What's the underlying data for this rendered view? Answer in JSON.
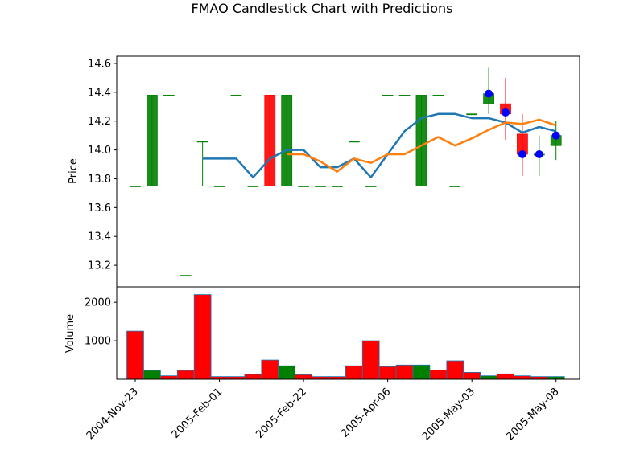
{
  "chart_data": {
    "type": "candlestick",
    "title": "FMAO Candlestick Chart with Predictions",
    "price_ylabel": "Price",
    "volume_ylabel": "Volume",
    "price_ylim": [
      13.05,
      14.65
    ],
    "volume_ylim": [
      0,
      2400
    ],
    "price_yticks": [
      "13.2",
      "13.4",
      "13.6",
      "13.8",
      "14.0",
      "14.2",
      "14.4",
      "14.6"
    ],
    "volume_yticks": [
      "1000",
      "2000"
    ],
    "x_ticks": [
      {
        "index": 0,
        "label": "2004-Nov-23"
      },
      {
        "index": 5,
        "label": "2005-Feb-01"
      },
      {
        "index": 10,
        "label": "2005-Feb-22"
      },
      {
        "index": 15,
        "label": "2005-Apr-06"
      },
      {
        "index": 20,
        "label": "2005-May-03"
      },
      {
        "index": 25,
        "label": "2005-May-08"
      }
    ],
    "candles": [
      {
        "o": 13.75,
        "h": 13.75,
        "l": 13.75,
        "c": 13.75
      },
      {
        "o": 13.75,
        "h": 14.38,
        "l": 13.75,
        "c": 14.38
      },
      {
        "o": 14.38,
        "h": 14.38,
        "l": 14.38,
        "c": 14.38
      },
      {
        "o": 13.13,
        "h": 13.13,
        "l": 13.13,
        "c": 13.13
      },
      {
        "o": 14.06,
        "h": 14.06,
        "l": 13.75,
        "c": 14.06
      },
      {
        "o": 13.75,
        "h": 13.75,
        "l": 13.75,
        "c": 13.75
      },
      {
        "o": 14.38,
        "h": 14.38,
        "l": 14.38,
        "c": 14.38
      },
      {
        "o": 13.75,
        "h": 13.75,
        "l": 13.75,
        "c": 13.75
      },
      {
        "o": 14.38,
        "h": 14.38,
        "l": 13.75,
        "c": 13.75
      },
      {
        "o": 13.75,
        "h": 14.38,
        "l": 13.75,
        "c": 14.38
      },
      {
        "o": 13.75,
        "h": 13.75,
        "l": 13.75,
        "c": 13.75
      },
      {
        "o": 13.75,
        "h": 13.75,
        "l": 13.75,
        "c": 13.75
      },
      {
        "o": 13.75,
        "h": 13.75,
        "l": 13.75,
        "c": 13.75
      },
      {
        "o": 14.06,
        "h": 14.06,
        "l": 14.06,
        "c": 14.06
      },
      {
        "o": 13.75,
        "h": 13.75,
        "l": 13.75,
        "c": 13.75
      },
      {
        "o": 14.38,
        "h": 14.38,
        "l": 14.38,
        "c": 14.38
      },
      {
        "o": 14.38,
        "h": 14.38,
        "l": 14.38,
        "c": 14.38
      },
      {
        "o": 13.75,
        "h": 14.38,
        "l": 13.75,
        "c": 14.38
      },
      {
        "o": 14.38,
        "h": 14.38,
        "l": 14.38,
        "c": 14.38
      },
      {
        "o": 13.75,
        "h": 13.75,
        "l": 13.75,
        "c": 13.75
      },
      {
        "o": 14.25,
        "h": 14.25,
        "l": 14.25,
        "c": 14.25
      },
      {
        "o": 14.32,
        "h": 14.57,
        "l": 14.25,
        "c": 14.39
      },
      {
        "o": 14.32,
        "h": 14.5,
        "l": 14.07,
        "c": 14.25
      },
      {
        "o": 14.11,
        "h": 14.25,
        "l": 13.82,
        "c": 13.97
      },
      {
        "o": 13.97,
        "h": 14.1,
        "l": 13.82,
        "c": 13.97
      },
      {
        "o": 14.03,
        "h": 14.2,
        "l": 13.93,
        "c": 14.1
      }
    ],
    "volume": [
      1250,
      230,
      90,
      230,
      2200,
      70,
      70,
      130,
      500,
      350,
      120,
      70,
      70,
      350,
      1000,
      330,
      370,
      370,
      240,
      480,
      180,
      90,
      140,
      90,
      70,
      70
    ],
    "series": [
      {
        "color": "#1f77b4",
        "x": [
          4,
          5,
          6,
          7,
          8,
          9,
          10,
          11,
          12,
          13,
          14,
          15,
          16,
          17,
          18,
          19,
          20,
          21,
          22,
          23,
          24,
          25
        ],
        "values": [
          13.94,
          13.94,
          13.94,
          13.81,
          13.94,
          14.0,
          14.0,
          13.88,
          13.88,
          13.94,
          13.81,
          13.97,
          14.13,
          14.22,
          14.25,
          14.25,
          14.22,
          14.22,
          14.19,
          14.12,
          14.16,
          14.13
        ]
      },
      {
        "color": "#ff7f0e",
        "x": [
          9,
          10,
          11,
          12,
          13,
          14,
          15,
          16,
          17,
          18,
          19,
          20,
          21,
          22,
          23,
          24,
          25
        ],
        "values": [
          13.97,
          13.97,
          13.92,
          13.85,
          13.94,
          13.91,
          13.97,
          13.97,
          14.03,
          14.09,
          14.03,
          14.08,
          14.14,
          14.19,
          14.18,
          14.21,
          14.17
        ]
      }
    ],
    "prediction_points": {
      "color": "#0000ff",
      "x": [
        21,
        22,
        23,
        24,
        25
      ],
      "values": [
        14.39,
        14.26,
        13.97,
        13.97,
        14.1
      ]
    },
    "colors": {
      "up": "#008000",
      "down": "#ff0000",
      "edge": "#1f77b4"
    }
  }
}
